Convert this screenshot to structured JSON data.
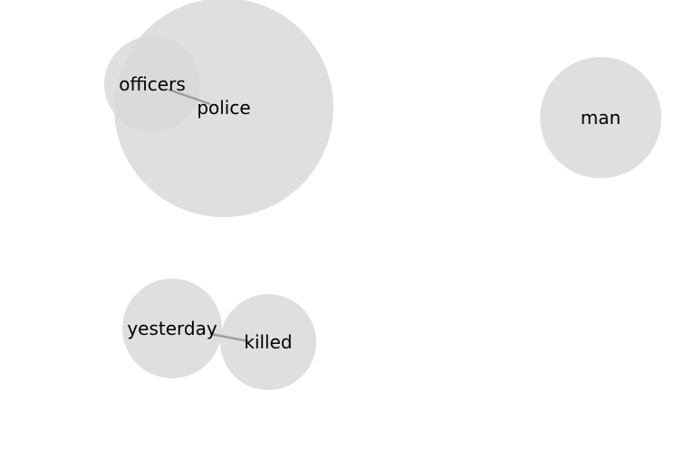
{
  "colors": {
    "background": "#ffffff",
    "node_fill": "#d9d9d9",
    "edge_stroke": "#9e9e9e",
    "label": "#000000"
  },
  "nodes": [
    {
      "id": "police",
      "label": "police"
    },
    {
      "id": "officers",
      "label": "officers"
    },
    {
      "id": "man",
      "label": "man"
    },
    {
      "id": "yesterday",
      "label": "yesterday"
    },
    {
      "id": "killed",
      "label": "killed"
    }
  ],
  "edges": [
    {
      "source": "officers",
      "target": "police"
    },
    {
      "source": "yesterday",
      "target": "killed"
    }
  ]
}
